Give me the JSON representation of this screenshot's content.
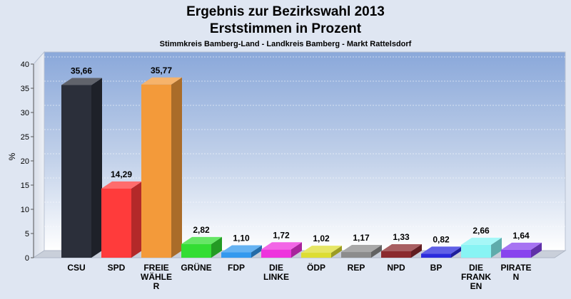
{
  "chart_data": {
    "type": "bar",
    "title": "Ergebnis zur Bezirkswahl 2013",
    "title_line2": "Erststimmen in Prozent",
    "subtitle": "Stimmkreis Bamberg-Land - Landkreis Bamberg - Markt Rattelsdorf",
    "ylabel": "%",
    "ylim": [
      0,
      40
    ],
    "yticks": [
      0,
      5,
      10,
      15,
      20,
      25,
      30,
      35,
      40
    ],
    "ytick_labels": [
      "0",
      "5",
      "10",
      "15",
      "20",
      "25",
      "30",
      "35",
      "40"
    ],
    "grid": true,
    "categories": [
      [
        "CSU"
      ],
      [
        "SPD"
      ],
      [
        "FREIE",
        "WÄHLE",
        "R"
      ],
      [
        "GRÜNE"
      ],
      [
        "FDP"
      ],
      [
        "DIE",
        "LINKE"
      ],
      [
        "ÖDP"
      ],
      [
        "REP"
      ],
      [
        "NPD"
      ],
      [
        "BP"
      ],
      [
        "DIE",
        "FRANK",
        "EN"
      ],
      [
        "PIRATE",
        "N"
      ]
    ],
    "values": [
      35.66,
      14.29,
      35.77,
      2.82,
      1.1,
      1.72,
      1.02,
      1.17,
      1.33,
      0.82,
      2.66,
      1.64
    ],
    "value_labels": [
      "35,66",
      "14,29",
      "35,77",
      "2,82",
      "1,10",
      "1,72",
      "1,02",
      "1,17",
      "1,33",
      "0,82",
      "2,66",
      "1,64"
    ],
    "colors": [
      "#2b2f3a",
      "#ff3b3b",
      "#f39a3a",
      "#33dd33",
      "#3399ee",
      "#ee33dd",
      "#dddd33",
      "#8c8c8c",
      "#8b2a2e",
      "#2b2bdd",
      "#88f4f4",
      "#8844ee"
    ]
  }
}
